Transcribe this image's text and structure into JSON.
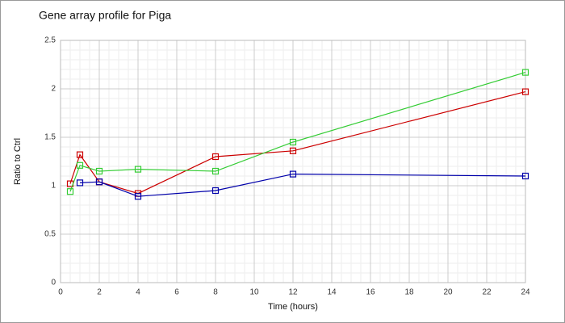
{
  "chart_data": {
    "type": "line",
    "title": "Gene array profile for Piga",
    "x_label": "Time (hours)",
    "y_label": "Ratio to Ctrl",
    "x": [
      0.5,
      1,
      2,
      4,
      8,
      12,
      24
    ],
    "series": [
      {
        "color": "#cc0000",
        "values": [
          1.02,
          1.32,
          1.04,
          0.92,
          1.3,
          1.36,
          1.97
        ]
      },
      {
        "color": "#33cc33",
        "values": [
          0.94,
          1.21,
          1.15,
          1.17,
          1.15,
          1.45,
          2.17
        ]
      },
      {
        "color": "#0000aa",
        "values": [
          null,
          1.03,
          1.04,
          0.89,
          0.95,
          1.12,
          1.1
        ]
      }
    ],
    "xlim": [
      0,
      24
    ],
    "xticks": [
      0,
      2,
      4,
      6,
      8,
      10,
      12,
      14,
      16,
      18,
      20,
      22,
      24
    ],
    "ylim": [
      0,
      2.5
    ],
    "yticks": [
      0,
      0.5,
      1,
      1.5,
      2,
      2.5
    ],
    "grid": true,
    "minor_grid": true
  }
}
